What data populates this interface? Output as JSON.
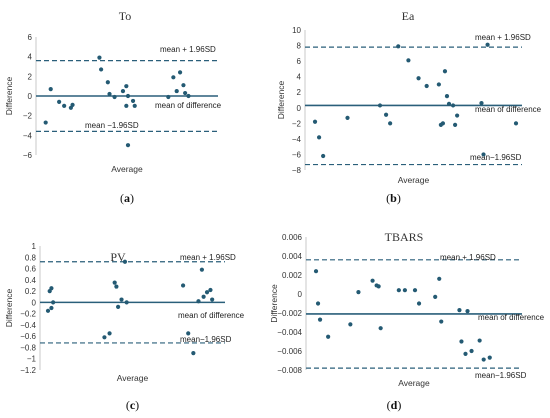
{
  "chart_data": [
    {
      "type": "scatter",
      "panel_label": "(a)",
      "title": "To",
      "xlabel": "Average",
      "ylabel": "Difference",
      "ylim": [
        -6,
        6
      ],
      "yticks": [
        -6,
        -4,
        -2,
        0,
        2,
        4,
        6
      ],
      "mean_of_difference": 0.0,
      "upper_limit": 3.6,
      "lower_limit": -3.6,
      "annotations": {
        "upper": "mean + 1.96SD",
        "mean": "mean of difference",
        "lower": "mean −1.96SD"
      },
      "points": [
        [
          0.01,
          -2.7
        ],
        [
          0.04,
          0.7
        ],
        [
          0.09,
          -0.6
        ],
        [
          0.12,
          -1.0
        ],
        [
          0.16,
          -1.2
        ],
        [
          0.17,
          -0.9
        ],
        [
          0.33,
          3.9
        ],
        [
          0.34,
          2.7
        ],
        [
          0.38,
          1.4
        ],
        [
          0.39,
          0.2
        ],
        [
          0.42,
          -0.1
        ],
        [
          0.47,
          0.5
        ],
        [
          0.49,
          1.0
        ],
        [
          0.49,
          -1.0
        ],
        [
          0.5,
          0.0
        ],
        [
          0.5,
          -5.0
        ],
        [
          0.53,
          -0.5
        ],
        [
          0.54,
          -1.0
        ],
        [
          0.74,
          -0.1
        ],
        [
          0.77,
          1.9
        ],
        [
          0.79,
          0.5
        ],
        [
          0.81,
          2.4
        ],
        [
          0.83,
          1.1
        ],
        [
          0.84,
          0.3
        ],
        [
          0.86,
          0.0
        ]
      ]
    },
    {
      "type": "scatter",
      "panel_label": "(b)",
      "title": "Ea",
      "xlabel": "Average",
      "ylabel": "Difference",
      "ylim": [
        -8,
        10
      ],
      "yticks": [
        -8,
        -6,
        -4,
        -2,
        0,
        2,
        4,
        6,
        8,
        10
      ],
      "mean_of_difference": 0.3,
      "upper_limit": 7.8,
      "lower_limit": -7.3,
      "annotations": {
        "upper": "mean + 1.96SD",
        "mean": "mean of difference",
        "lower": "mean−1.96SD"
      },
      "points": [
        [
          0.01,
          -1.8
        ],
        [
          0.03,
          -3.8
        ],
        [
          0.05,
          -6.2
        ],
        [
          0.17,
          -1.3
        ],
        [
          0.33,
          0.3
        ],
        [
          0.36,
          -0.9
        ],
        [
          0.38,
          -2.0
        ],
        [
          0.42,
          7.9
        ],
        [
          0.47,
          6.1
        ],
        [
          0.52,
          3.8
        ],
        [
          0.56,
          2.8
        ],
        [
          0.62,
          3.0
        ],
        [
          0.63,
          -2.2
        ],
        [
          0.64,
          -2.0
        ],
        [
          0.65,
          4.7
        ],
        [
          0.66,
          1.5
        ],
        [
          0.67,
          0.5
        ],
        [
          0.69,
          0.3
        ],
        [
          0.7,
          -2.2
        ],
        [
          0.71,
          -1.0
        ],
        [
          0.83,
          0.6
        ],
        [
          0.84,
          -6.0
        ],
        [
          0.86,
          8.1
        ],
        [
          1.0,
          -2.0
        ]
      ]
    },
    {
      "type": "scatter",
      "panel_label": "(c)",
      "title": "PV",
      "xlabel": "Average",
      "ylabel": "Difference",
      "ylim": [
        -1.2,
        1.0
      ],
      "yticks": [
        -1.2,
        -1.0,
        -0.8,
        -0.6,
        -0.4,
        -0.2,
        0,
        0.2,
        0.4,
        0.6,
        0.8,
        1.0
      ],
      "ytick_labels": [
        "−1.2",
        "−1",
        "−0.8",
        "−0.6",
        "−0.4",
        "−0.2",
        "0",
        "0.2",
        "0.4",
        "0.6",
        "0.8",
        "1"
      ],
      "mean_of_difference": 0.0,
      "upper_limit": 0.72,
      "lower_limit": -0.72,
      "annotations": {
        "upper": "mean + 1.96SD",
        "mean": "mean of difference",
        "lower": "mean−1.96SD"
      },
      "points": [
        [
          0.0,
          -0.15
        ],
        [
          0.01,
          0.2
        ],
        [
          0.02,
          0.25
        ],
        [
          0.02,
          -0.1
        ],
        [
          0.03,
          0.0
        ],
        [
          0.33,
          -0.62
        ],
        [
          0.36,
          -0.55
        ],
        [
          0.39,
          0.35
        ],
        [
          0.4,
          0.28
        ],
        [
          0.41,
          -0.08
        ],
        [
          0.43,
          0.05
        ],
        [
          0.45,
          0.72
        ],
        [
          0.46,
          0.0
        ],
        [
          0.79,
          0.3
        ],
        [
          0.82,
          -0.55
        ],
        [
          0.85,
          -0.9
        ],
        [
          0.88,
          0.02
        ],
        [
          0.9,
          0.58
        ],
        [
          0.91,
          0.1
        ],
        [
          0.93,
          0.18
        ],
        [
          0.95,
          0.22
        ],
        [
          0.96,
          0.05
        ]
      ]
    },
    {
      "type": "scatter",
      "panel_label": "(d)",
      "title": "TBARS",
      "xlabel": "Average",
      "ylabel": "Difference",
      "ylim": [
        -0.008,
        0.006
      ],
      "yticks": [
        -0.008,
        -0.006,
        -0.004,
        -0.002,
        0,
        0.002,
        0.004,
        0.006
      ],
      "ytick_labels": [
        "−0.008",
        "−0.006",
        "−0.004",
        "−0.002",
        "0",
        "0.002",
        "0.004",
        "0.006"
      ],
      "mean_of_difference": -0.0021,
      "upper_limit": 0.0036,
      "lower_limit": -0.0078,
      "annotations": {
        "upper": "mean + 1.96SD",
        "mean": "mean of difference",
        "lower": "mean−1.96SD"
      },
      "points": [
        [
          0.01,
          0.0024
        ],
        [
          0.02,
          -0.001
        ],
        [
          0.03,
          -0.0027
        ],
        [
          0.07,
          -0.0045
        ],
        [
          0.18,
          -0.0032
        ],
        [
          0.22,
          0.0002
        ],
        [
          0.29,
          0.0014
        ],
        [
          0.31,
          0.0009
        ],
        [
          0.32,
          0.0008
        ],
        [
          0.33,
          -0.0036
        ],
        [
          0.42,
          0.0004
        ],
        [
          0.45,
          0.0004
        ],
        [
          0.5,
          0.0004
        ],
        [
          0.52,
          -0.001
        ],
        [
          0.6,
          -0.0003
        ],
        [
          0.62,
          0.0016
        ],
        [
          0.63,
          -0.0029
        ],
        [
          0.72,
          -0.0017
        ],
        [
          0.73,
          -0.005
        ],
        [
          0.75,
          -0.0063
        ],
        [
          0.76,
          -0.0018
        ],
        [
          0.78,
          -0.006
        ],
        [
          0.82,
          -0.0049
        ],
        [
          0.84,
          -0.0069
        ],
        [
          0.87,
          -0.0067
        ]
      ]
    }
  ]
}
